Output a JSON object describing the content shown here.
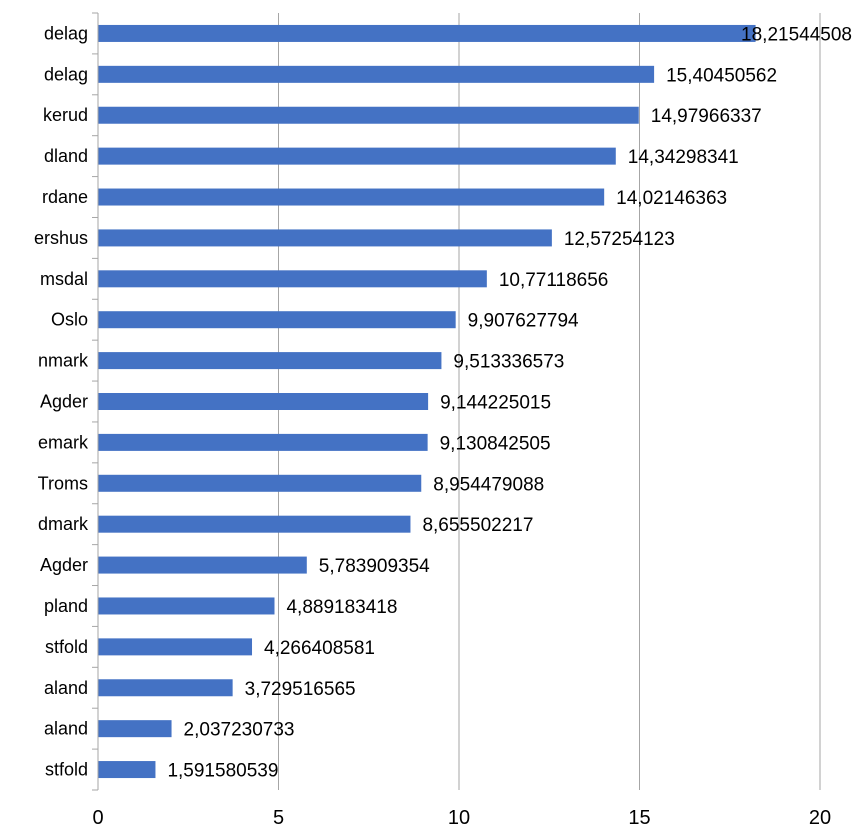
{
  "chart_data": {
    "type": "bar",
    "orientation": "horizontal",
    "title": "",
    "xlabel": "",
    "ylabel": "",
    "xlim": [
      0,
      20
    ],
    "x_ticks": [
      0,
      5,
      10,
      15,
      20
    ],
    "x_tick_labels": [
      "0",
      "5",
      "10",
      "15",
      "20"
    ],
    "grid": "vertical",
    "legend": "none",
    "bar_color": "#4472c4",
    "categories": [
      "delag",
      "delag",
      "kerud",
      "dland",
      "rdane",
      "ershus",
      "msdal",
      "Oslo",
      "nmark",
      "Agder",
      "emark",
      "Troms",
      "dmark",
      "Agder",
      "pland",
      "stfold",
      "aland",
      "aland",
      "stfold"
    ],
    "values": [
      18.21544508,
      15.40450562,
      14.97966337,
      14.34298341,
      14.02146363,
      12.57254123,
      10.77118656,
      9.907627794,
      9.513336573,
      9.144225015,
      9.130842505,
      8.954479088,
      8.655502217,
      5.783909354,
      4.889183418,
      4.266408581,
      3.729516565,
      2.037230733,
      1.591580539
    ],
    "data_labels": [
      "18,21544508",
      "15,40450562",
      "14,97966337",
      "14,34298341",
      "14,02146363",
      "12,57254123",
      "10,77118656",
      "9,907627794",
      "9,513336573",
      "9,144225015",
      "9,130842505",
      "8,954479088",
      "8,655502217",
      "5,783909354",
      "4,889183418",
      "4,266408581",
      "3,729516565",
      "2,037230733",
      "1,591580539"
    ]
  }
}
